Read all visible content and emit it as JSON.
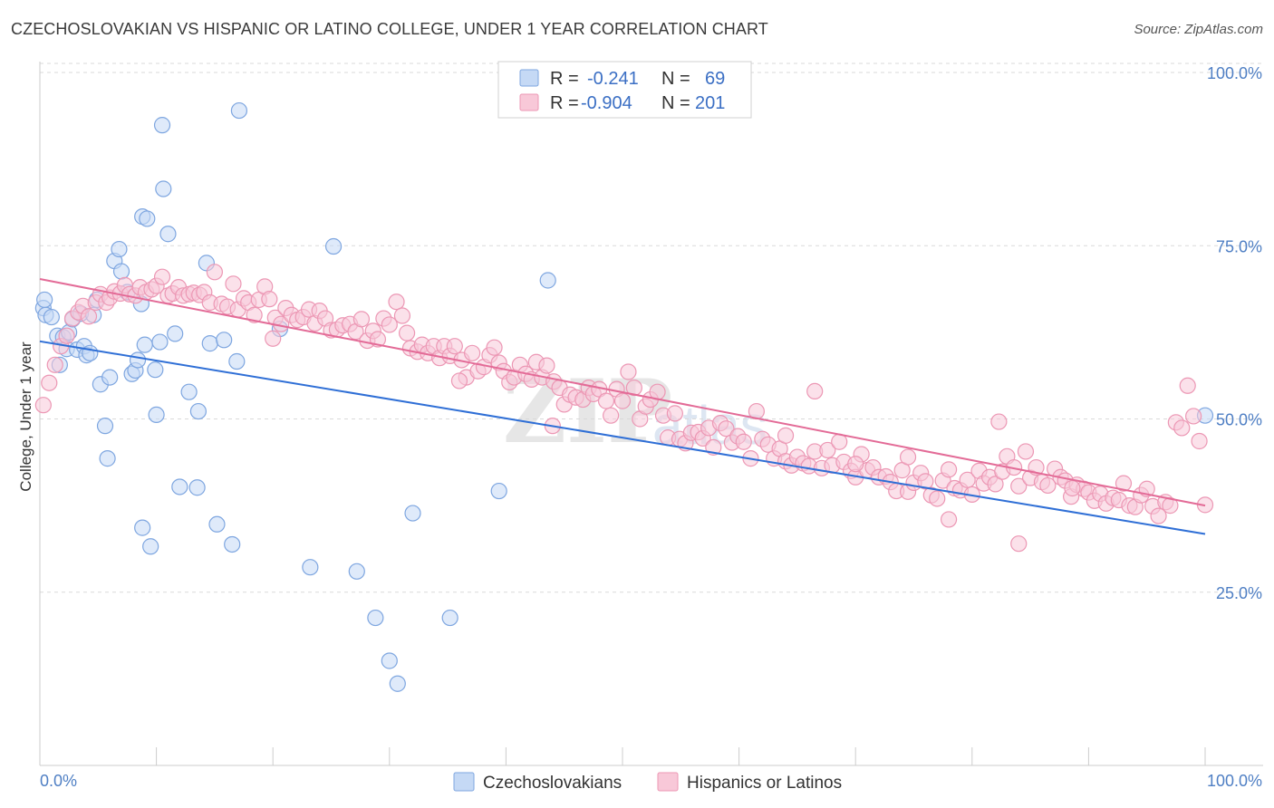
{
  "title": "CZECHOSLOVAKIAN VS HISPANIC OR LATINO COLLEGE, UNDER 1 YEAR CORRELATION CHART",
  "source": "Source: ZipAtlas.com",
  "watermark": {
    "zip": "ZIP",
    "atlas": "atlas"
  },
  "colors": {
    "blue_fill": "#c5d9f5",
    "blue_stroke": "#7ea6e0",
    "blue_line": "#2f6fd6",
    "pink_fill": "#f8c8d8",
    "pink_stroke": "#ec97b4",
    "pink_line": "#e36b97",
    "grid": "#d9d9d9",
    "tick_text": "#4f7fc4"
  },
  "legend": {
    "rows": [
      {
        "r_label": "R =",
        "r_value": "-0.241",
        "n_label": "N =",
        "n_value": "69"
      },
      {
        "r_label": "R =",
        "r_value": "-0.904",
        "n_label": "N =",
        "n_value": "201"
      }
    ]
  },
  "bottom_legend": [
    "Czechoslovakians",
    "Hispanics or Latinos"
  ],
  "chart_data": {
    "type": "scatter",
    "title": "CZECHOSLOVAKIAN VS HISPANIC OR LATINO COLLEGE, UNDER 1 YEAR CORRELATION CHART",
    "xlabel": "",
    "ylabel": "College, Under 1 year",
    "xlim": [
      0,
      100
    ],
    "ylim": [
      0,
      102
    ],
    "x_tick_labels": [
      "0.0%",
      "100.0%"
    ],
    "y_tick_values": [
      25,
      50,
      75,
      100
    ],
    "y_tick_labels": [
      "25.0%",
      "50.0%",
      "75.0%",
      "100.0%"
    ],
    "grid": true,
    "series": [
      {
        "name": "Czechoslovakians",
        "R": -0.241,
        "N": 69,
        "trend": {
          "x0": 0,
          "y0": 61.2,
          "x1": 100,
          "y1": 33.4
        },
        "points": [
          [
            0.3,
            66.0
          ],
          [
            0.5,
            65.0
          ],
          [
            0.4,
            67.2
          ],
          [
            1.0,
            64.7
          ],
          [
            1.5,
            62.0
          ],
          [
            1.7,
            57.8
          ],
          [
            2.0,
            61.8
          ],
          [
            2.3,
            60.1
          ],
          [
            2.5,
            62.5
          ],
          [
            2.8,
            64.4
          ],
          [
            3.2,
            60.0
          ],
          [
            3.5,
            65.2
          ],
          [
            3.8,
            60.5
          ],
          [
            4.0,
            59.2
          ],
          [
            4.3,
            59.5
          ],
          [
            4.6,
            65.0
          ],
          [
            4.9,
            67.2
          ],
          [
            5.2,
            55.0
          ],
          [
            5.6,
            49.0
          ],
          [
            5.8,
            44.3
          ],
          [
            6.0,
            56.0
          ],
          [
            6.4,
            72.8
          ],
          [
            6.8,
            74.5
          ],
          [
            7.0,
            71.3
          ],
          [
            7.5,
            68.3
          ],
          [
            7.9,
            56.5
          ],
          [
            8.2,
            57.0
          ],
          [
            8.4,
            58.5
          ],
          [
            8.7,
            66.6
          ],
          [
            8.8,
            34.3
          ],
          [
            9.0,
            60.7
          ],
          [
            8.8,
            79.2
          ],
          [
            9.2,
            78.9
          ],
          [
            9.5,
            31.6
          ],
          [
            9.9,
            57.1
          ],
          [
            10.0,
            50.6
          ],
          [
            10.3,
            61.1
          ],
          [
            10.5,
            92.4
          ],
          [
            10.6,
            83.2
          ],
          [
            11.0,
            76.7
          ],
          [
            11.6,
            62.3
          ],
          [
            12.0,
            40.2
          ],
          [
            12.8,
            53.9
          ],
          [
            13.5,
            40.1
          ],
          [
            13.6,
            51.1
          ],
          [
            14.3,
            72.5
          ],
          [
            14.6,
            60.9
          ],
          [
            15.2,
            34.8
          ],
          [
            15.8,
            61.4
          ],
          [
            16.5,
            31.9
          ],
          [
            16.9,
            58.3
          ],
          [
            17.1,
            94.5
          ],
          [
            20.6,
            63.0
          ],
          [
            23.2,
            28.6
          ],
          [
            25.2,
            74.9
          ],
          [
            27.2,
            28.0
          ],
          [
            28.8,
            21.3
          ],
          [
            30.0,
            15.1
          ],
          [
            30.7,
            11.8
          ],
          [
            32.0,
            36.4
          ],
          [
            35.2,
            21.3
          ],
          [
            39.4,
            39.6
          ],
          [
            43.6,
            70.0
          ],
          [
            100.0,
            50.5
          ]
        ]
      },
      {
        "name": "Hispanics or Latinos",
        "R": -0.904,
        "N": 201,
        "trend": {
          "x0": 0,
          "y0": 70.2,
          "x1": 100,
          "y1": 37.5
        },
        "points": [
          [
            0.3,
            52.0
          ],
          [
            0.8,
            55.2
          ],
          [
            1.3,
            57.8
          ],
          [
            1.8,
            60.5
          ],
          [
            2.3,
            62.0
          ],
          [
            2.8,
            64.5
          ],
          [
            3.3,
            65.4
          ],
          [
            3.7,
            66.3
          ],
          [
            4.2,
            64.8
          ],
          [
            4.8,
            66.8
          ],
          [
            5.2,
            68.0
          ],
          [
            5.7,
            66.8
          ],
          [
            6.0,
            67.5
          ],
          [
            6.4,
            68.4
          ],
          [
            6.9,
            68.1
          ],
          [
            7.3,
            69.3
          ],
          [
            7.7,
            68.0
          ],
          [
            8.2,
            67.8
          ],
          [
            8.6,
            69.0
          ],
          [
            9.1,
            68.3
          ],
          [
            9.6,
            68.7
          ],
          [
            10.0,
            69.2
          ],
          [
            10.5,
            70.5
          ],
          [
            11.0,
            67.8
          ],
          [
            11.4,
            68.1
          ],
          [
            11.9,
            69.0
          ],
          [
            12.3,
            67.8
          ],
          [
            12.8,
            68.0
          ],
          [
            13.2,
            68.2
          ],
          [
            13.7,
            67.9
          ],
          [
            14.1,
            68.3
          ],
          [
            14.6,
            66.8
          ],
          [
            15.0,
            71.2
          ],
          [
            15.6,
            66.6
          ],
          [
            16.1,
            66.2
          ],
          [
            16.6,
            69.5
          ],
          [
            17.0,
            65.8
          ],
          [
            17.5,
            67.4
          ],
          [
            17.9,
            66.8
          ],
          [
            18.4,
            65.0
          ],
          [
            18.8,
            67.2
          ],
          [
            19.3,
            69.1
          ],
          [
            19.7,
            67.3
          ],
          [
            20.2,
            64.6
          ],
          [
            20.7,
            63.7
          ],
          [
            21.1,
            66.0
          ],
          [
            21.6,
            65.0
          ],
          [
            22.1,
            64.3
          ],
          [
            22.6,
            64.7
          ],
          [
            23.1,
            65.8
          ],
          [
            23.6,
            63.8
          ],
          [
            24.0,
            65.6
          ],
          [
            24.5,
            64.5
          ],
          [
            25.0,
            62.8
          ],
          [
            25.5,
            62.9
          ],
          [
            26.0,
            63.5
          ],
          [
            26.6,
            63.7
          ],
          [
            27.1,
            62.6
          ],
          [
            27.6,
            64.4
          ],
          [
            28.1,
            61.3
          ],
          [
            28.6,
            62.7
          ],
          [
            29.0,
            61.5
          ],
          [
            29.5,
            64.5
          ],
          [
            30.0,
            63.6
          ],
          [
            30.6,
            66.9
          ],
          [
            31.1,
            64.9
          ],
          [
            31.5,
            62.4
          ],
          [
            31.8,
            60.2
          ],
          [
            32.4,
            59.7
          ],
          [
            32.8,
            60.7
          ],
          [
            33.3,
            59.5
          ],
          [
            33.8,
            60.5
          ],
          [
            34.3,
            58.8
          ],
          [
            34.7,
            60.5
          ],
          [
            35.2,
            59.1
          ],
          [
            35.6,
            60.5
          ],
          [
            36.2,
            58.5
          ],
          [
            36.6,
            56.0
          ],
          [
            37.1,
            59.5
          ],
          [
            37.6,
            56.9
          ],
          [
            38.1,
            57.5
          ],
          [
            38.6,
            59.2
          ],
          [
            39.0,
            60.3
          ],
          [
            39.4,
            58.1
          ],
          [
            39.8,
            56.9
          ],
          [
            40.3,
            55.3
          ],
          [
            40.7,
            56.0
          ],
          [
            41.2,
            57.8
          ],
          [
            41.7,
            56.5
          ],
          [
            42.2,
            55.7
          ],
          [
            42.6,
            58.2
          ],
          [
            43.1,
            56.0
          ],
          [
            43.5,
            57.7
          ],
          [
            44.1,
            55.4
          ],
          [
            44.6,
            54.5
          ],
          [
            45.0,
            52.1
          ],
          [
            45.5,
            53.5
          ],
          [
            46.0,
            53.1
          ],
          [
            46.6,
            52.8
          ],
          [
            47.1,
            54.5
          ],
          [
            47.5,
            53.6
          ],
          [
            48.0,
            54.3
          ],
          [
            48.6,
            52.6
          ],
          [
            49.0,
            50.5
          ],
          [
            49.5,
            54.3
          ],
          [
            50.0,
            52.6
          ],
          [
            50.5,
            56.8
          ],
          [
            51.0,
            54.5
          ],
          [
            51.5,
            50.0
          ],
          [
            52.0,
            51.8
          ],
          [
            52.4,
            52.8
          ],
          [
            53.0,
            53.9
          ],
          [
            53.5,
            50.5
          ],
          [
            53.9,
            47.3
          ],
          [
            54.5,
            50.8
          ],
          [
            54.9,
            47.1
          ],
          [
            55.4,
            46.5
          ],
          [
            55.9,
            48.0
          ],
          [
            56.5,
            48.1
          ],
          [
            56.9,
            47.2
          ],
          [
            57.4,
            48.7
          ],
          [
            57.8,
            45.9
          ],
          [
            58.4,
            49.4
          ],
          [
            58.9,
            48.6
          ],
          [
            59.4,
            46.6
          ],
          [
            59.9,
            47.5
          ],
          [
            60.4,
            46.7
          ],
          [
            61.0,
            44.3
          ],
          [
            61.5,
            51.1
          ],
          [
            62.0,
            47.1
          ],
          [
            62.5,
            46.3
          ],
          [
            63.0,
            44.3
          ],
          [
            63.5,
            45.7
          ],
          [
            64.0,
            43.9
          ],
          [
            64.5,
            43.3
          ],
          [
            65.0,
            44.5
          ],
          [
            65.5,
            43.6
          ],
          [
            66.0,
            43.2
          ],
          [
            66.5,
            45.3
          ],
          [
            67.1,
            42.9
          ],
          [
            67.6,
            45.5
          ],
          [
            68.0,
            43.3
          ],
          [
            68.6,
            46.7
          ],
          [
            69.0,
            43.8
          ],
          [
            69.6,
            42.5
          ],
          [
            70.0,
            41.6
          ],
          [
            70.5,
            44.9
          ],
          [
            71.0,
            42.6
          ],
          [
            71.5,
            43.0
          ],
          [
            72.0,
            41.6
          ],
          [
            72.6,
            41.7
          ],
          [
            73.0,
            40.9
          ],
          [
            73.5,
            39.6
          ],
          [
            74.0,
            42.6
          ],
          [
            74.5,
            39.5
          ],
          [
            75.0,
            40.8
          ],
          [
            75.6,
            42.2
          ],
          [
            76.0,
            41.0
          ],
          [
            76.5,
            39.0
          ],
          [
            77.0,
            38.5
          ],
          [
            77.5,
            41.1
          ],
          [
            78.0,
            42.7
          ],
          [
            78.5,
            40.0
          ],
          [
            79.0,
            39.7
          ],
          [
            79.6,
            41.2
          ],
          [
            80.0,
            39.1
          ],
          [
            80.6,
            42.5
          ],
          [
            81.0,
            40.7
          ],
          [
            81.5,
            41.6
          ],
          [
            82.0,
            40.6
          ],
          [
            82.6,
            42.4
          ],
          [
            83.0,
            44.6
          ],
          [
            83.6,
            43.0
          ],
          [
            84.0,
            40.3
          ],
          [
            84.6,
            45.3
          ],
          [
            85.0,
            41.5
          ],
          [
            85.5,
            43.0
          ],
          [
            86.0,
            40.9
          ],
          [
            86.5,
            40.4
          ],
          [
            87.1,
            42.8
          ],
          [
            87.6,
            41.6
          ],
          [
            88.0,
            41.1
          ],
          [
            88.5,
            38.8
          ],
          [
            89.0,
            40.5
          ],
          [
            89.6,
            39.9
          ],
          [
            90.0,
            39.4
          ],
          [
            90.5,
            38.2
          ],
          [
            91.0,
            39.2
          ],
          [
            91.5,
            37.8
          ],
          [
            92.1,
            38.6
          ],
          [
            92.6,
            38.3
          ],
          [
            93.0,
            40.7
          ],
          [
            93.5,
            37.5
          ],
          [
            94.0,
            37.3
          ],
          [
            94.5,
            39.0
          ],
          [
            95.0,
            39.9
          ],
          [
            95.5,
            37.4
          ],
          [
            96.0,
            36.0
          ],
          [
            96.6,
            38.0
          ],
          [
            97.0,
            37.5
          ],
          [
            97.5,
            49.5
          ],
          [
            98.0,
            48.7
          ],
          [
            98.5,
            54.8
          ],
          [
            99.0,
            50.4
          ],
          [
            99.5,
            46.8
          ],
          [
            100.0,
            37.6
          ],
          [
            20.0,
            61.6
          ],
          [
            36.0,
            55.5
          ],
          [
            44.0,
            49.0
          ],
          [
            64.0,
            47.6
          ],
          [
            66.5,
            54.0
          ],
          [
            70.0,
            43.5
          ],
          [
            74.5,
            44.5
          ],
          [
            78.0,
            35.5
          ],
          [
            82.3,
            49.6
          ],
          [
            84.0,
            32.0
          ],
          [
            88.6,
            40.0
          ]
        ]
      }
    ]
  }
}
